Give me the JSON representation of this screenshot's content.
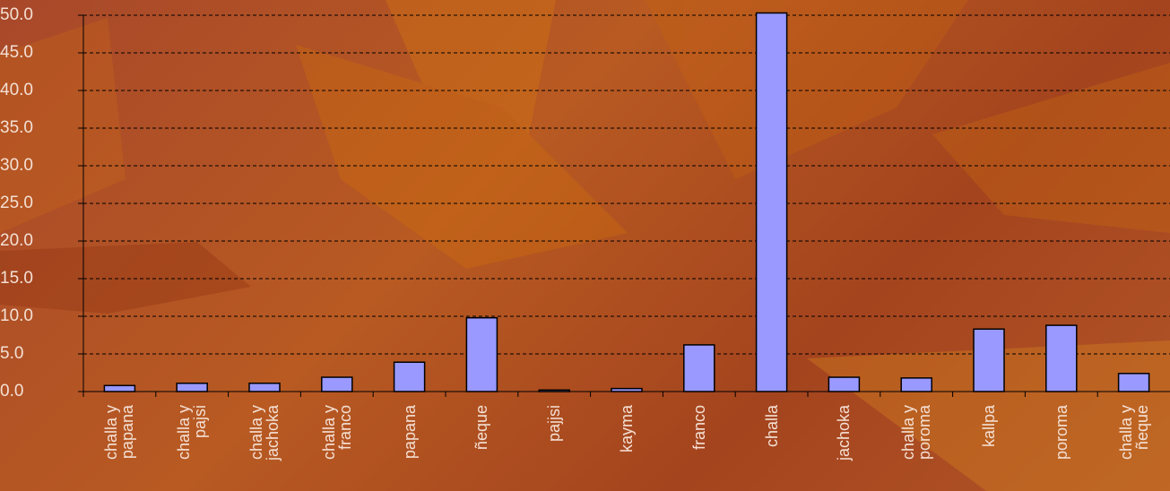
{
  "chart_data": {
    "type": "bar",
    "categories": [
      "challa y papana",
      "challa y pajsi",
      "challa y jachoka",
      "challa y franco",
      "papana",
      "ñeque",
      "pajjsi",
      "kayma",
      "franco",
      "challa",
      "jachoka",
      "challa y poroma",
      "kallpa",
      "poroma",
      "challa y ñeque"
    ],
    "values": [
      0.8,
      1.1,
      1.1,
      1.9,
      3.9,
      9.8,
      0.2,
      0.4,
      6.2,
      50.3,
      1.9,
      1.8,
      8.3,
      8.8,
      2.4
    ],
    "color": "#9999ff",
    "ylim": [
      0,
      50
    ],
    "yticks": [
      {
        "value": 0,
        "label": "0.0"
      },
      {
        "value": 5,
        "label": "5.0"
      },
      {
        "value": 10,
        "label": "10.0"
      },
      {
        "value": 15,
        "label": "15.0"
      },
      {
        "value": 20,
        "label": "20.0"
      },
      {
        "value": 25,
        "label": "25.0"
      },
      {
        "value": 30,
        "label": "30.0"
      },
      {
        "value": 35,
        "label": "35.0"
      },
      {
        "value": 40,
        "label": "40.0"
      },
      {
        "value": 45,
        "label": "45.0"
      },
      {
        "value": 50,
        "label": "50.0"
      }
    ],
    "grid": true
  }
}
